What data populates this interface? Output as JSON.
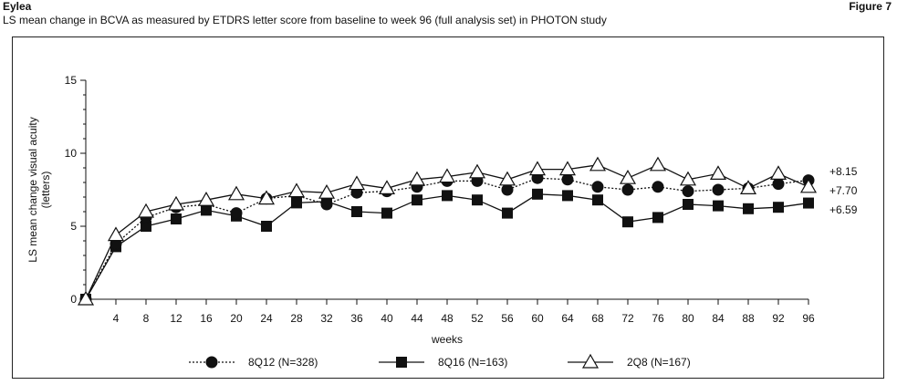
{
  "header": {
    "brand": "Eylea",
    "figure_label": "Figure 7",
    "subtitle": "LS mean change in BCVA as measured by ETDRS letter score from baseline to week 96 (full analysis set) in PHOTON study"
  },
  "chart_data": {
    "type": "line",
    "xlabel": "weeks",
    "ylabel": "LS mean change visual acuity (letters)",
    "ylabel_lines": [
      "LS mean change visual acuity",
      "(letters)"
    ],
    "ylim": [
      0,
      15
    ],
    "yticks": [
      0,
      5,
      10,
      15
    ],
    "xlim": [
      0,
      96
    ],
    "xticks": [
      4,
      8,
      12,
      16,
      20,
      24,
      28,
      32,
      36,
      40,
      44,
      48,
      52,
      56,
      60,
      64,
      68,
      72,
      76,
      80,
      84,
      88,
      92,
      96
    ],
    "x": [
      0,
      4,
      8,
      12,
      16,
      20,
      24,
      28,
      32,
      36,
      40,
      44,
      48,
      52,
      56,
      60,
      64,
      68,
      72,
      76,
      80,
      84,
      88,
      92,
      96
    ],
    "grid": false,
    "legend_position": "bottom",
    "series": [
      {
        "name": "8Q12 (N=328)",
        "marker": "circle",
        "line_style": "dotted",
        "end_label": "+8.15",
        "values": [
          0,
          3.8,
          5.6,
          6.3,
          6.5,
          5.9,
          6.9,
          7.1,
          6.5,
          7.3,
          7.4,
          7.7,
          8.1,
          8.1,
          7.5,
          8.3,
          8.2,
          7.7,
          7.5,
          7.7,
          7.4,
          7.5,
          7.6,
          7.9,
          8.15
        ]
      },
      {
        "name": "8Q16 (N=163)",
        "marker": "square",
        "line_style": "solid",
        "end_label": "+6.59",
        "values": [
          0,
          3.6,
          5.0,
          5.5,
          6.1,
          5.7,
          5.0,
          6.6,
          6.7,
          6.0,
          5.9,
          6.8,
          7.1,
          6.8,
          5.9,
          7.2,
          7.1,
          6.8,
          5.3,
          5.6,
          6.5,
          6.4,
          6.2,
          6.3,
          6.59
        ]
      },
      {
        "name": "2Q8 (N=167)",
        "marker": "triangle",
        "line_style": "solid",
        "end_label": "+7.70",
        "values": [
          0,
          4.4,
          6.0,
          6.5,
          6.8,
          7.2,
          6.9,
          7.4,
          7.3,
          7.9,
          7.6,
          8.2,
          8.4,
          8.7,
          8.2,
          8.9,
          8.9,
          9.2,
          8.3,
          9.2,
          8.2,
          8.6,
          7.6,
          8.6,
          7.7
        ]
      }
    ]
  }
}
